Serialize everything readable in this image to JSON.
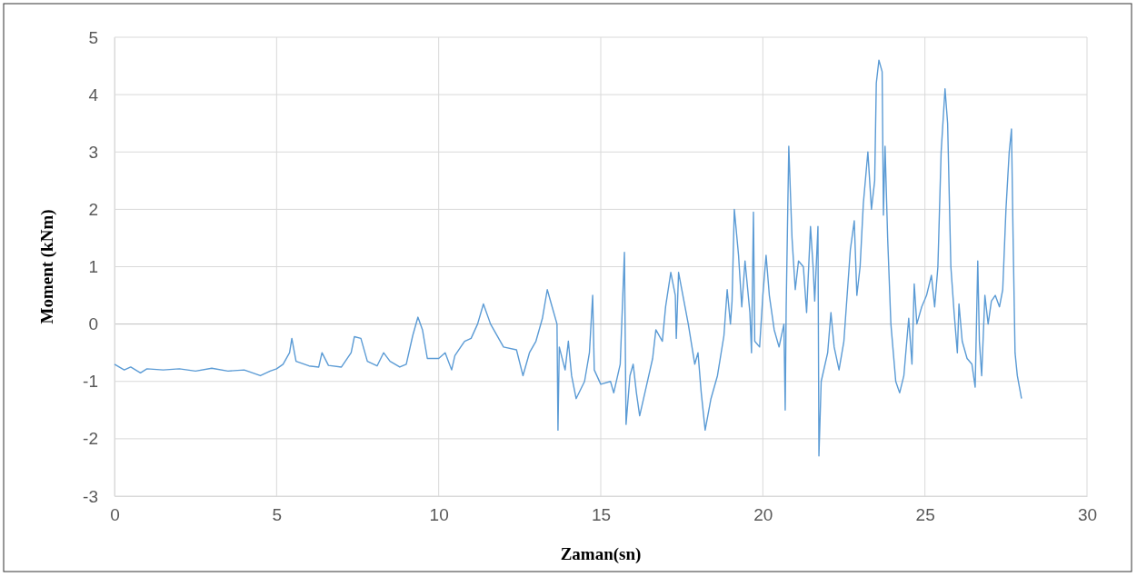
{
  "chart_data": {
    "type": "line",
    "xlabel": "Zaman(sn)",
    "ylabel": "Moment (kNm)",
    "xlim": [
      0,
      30
    ],
    "xticks": [
      0,
      5,
      10,
      15,
      20,
      25,
      30
    ],
    "ylim": [
      -3,
      5
    ],
    "yticks": [
      -3,
      -2,
      -1,
      0,
      1,
      2,
      3,
      4,
      5
    ],
    "grid": true,
    "marker": "none",
    "line_style": "solid",
    "series": [
      {
        "color": "#5b9bd5",
        "x": [
          0,
          0.3,
          0.5,
          0.8,
          1.0,
          1.5,
          2.0,
          2.5,
          3.0,
          3.5,
          4.0,
          4.5,
          4.8,
          5.0,
          5.2,
          5.4,
          5.47,
          5.6,
          6.0,
          6.3,
          6.4,
          6.6,
          7.0,
          7.3,
          7.4,
          7.6,
          7.8,
          8.1,
          8.3,
          8.5,
          8.8,
          9.0,
          9.2,
          9.36,
          9.5,
          9.65,
          10.0,
          10.2,
          10.4,
          10.5,
          10.8,
          11.0,
          11.2,
          11.38,
          11.6,
          12.0,
          12.4,
          12.6,
          12.8,
          13.0,
          13.2,
          13.35,
          13.5,
          13.65,
          13.68,
          13.72,
          13.9,
          14.0,
          14.1,
          14.24,
          14.5,
          14.65,
          14.75,
          14.8,
          15.0,
          15.3,
          15.4,
          15.6,
          15.73,
          15.78,
          15.9,
          16.0,
          16.1,
          16.2,
          16.4,
          16.6,
          16.7,
          16.9,
          17.0,
          17.16,
          17.3,
          17.33,
          17.4,
          17.7,
          17.9,
          18.0,
          18.1,
          18.22,
          18.4,
          18.6,
          18.8,
          18.9,
          19.0,
          19.05,
          19.12,
          19.25,
          19.35,
          19.45,
          19.6,
          19.65,
          19.71,
          19.75,
          19.9,
          20.0,
          20.1,
          20.2,
          20.35,
          20.5,
          20.65,
          20.69,
          20.72,
          20.8,
          20.9,
          21.0,
          21.1,
          21.25,
          21.35,
          21.47,
          21.55,
          21.6,
          21.7,
          21.73,
          21.8,
          22.0,
          22.1,
          22.2,
          22.35,
          22.5,
          22.7,
          22.82,
          22.9,
          23.0,
          23.1,
          23.24,
          23.35,
          23.45,
          23.5,
          23.58,
          23.68,
          23.72,
          23.77,
          23.85,
          23.95,
          24.1,
          24.22,
          24.35,
          24.5,
          24.6,
          24.67,
          24.75,
          24.9,
          25.05,
          25.2,
          25.3,
          25.4,
          25.5,
          25.62,
          25.7,
          25.8,
          25.9,
          26.0,
          26.05,
          26.15,
          26.3,
          26.45,
          26.55,
          26.63,
          26.68,
          26.75,
          26.85,
          26.95,
          27.05,
          27.17,
          27.3,
          27.4,
          27.5,
          27.6,
          27.67,
          27.72,
          27.78,
          27.85,
          27.98
        ],
        "values": [
          -0.7,
          -0.8,
          -0.75,
          -0.85,
          -0.78,
          -0.8,
          -0.78,
          -0.82,
          -0.77,
          -0.82,
          -0.8,
          -0.9,
          -0.82,
          -0.78,
          -0.7,
          -0.5,
          -0.25,
          -0.65,
          -0.73,
          -0.75,
          -0.5,
          -0.72,
          -0.75,
          -0.5,
          -0.22,
          -0.25,
          -0.65,
          -0.73,
          -0.5,
          -0.65,
          -0.75,
          -0.7,
          -0.2,
          0.12,
          -0.1,
          -0.6,
          -0.6,
          -0.5,
          -0.8,
          -0.55,
          -0.3,
          -0.25,
          0.0,
          0.35,
          0.0,
          -0.4,
          -0.45,
          -0.9,
          -0.5,
          -0.3,
          0.1,
          0.6,
          0.3,
          0.0,
          -1.85,
          -0.4,
          -0.8,
          -0.3,
          -0.9,
          -1.3,
          -1.0,
          -0.5,
          0.5,
          -0.8,
          -1.05,
          -1.0,
          -1.2,
          -0.7,
          1.25,
          -1.75,
          -0.9,
          -0.7,
          -1.2,
          -1.6,
          -1.1,
          -0.6,
          -0.1,
          -0.3,
          0.3,
          0.9,
          0.5,
          -0.25,
          0.9,
          0.0,
          -0.7,
          -0.5,
          -1.2,
          -1.85,
          -1.3,
          -0.9,
          -0.2,
          0.6,
          0.0,
          0.4,
          2.0,
          1.2,
          0.3,
          1.1,
          0.2,
          -0.5,
          1.95,
          -0.3,
          -0.4,
          0.5,
          1.2,
          0.5,
          -0.1,
          -0.4,
          0.0,
          -1.5,
          0.3,
          3.1,
          1.5,
          0.6,
          1.1,
          1.0,
          0.2,
          1.7,
          1.0,
          0.4,
          1.7,
          -2.3,
          -1.0,
          -0.5,
          0.2,
          -0.4,
          -0.8,
          -0.3,
          1.3,
          1.8,
          0.5,
          1.0,
          2.1,
          3.0,
          2.0,
          2.5,
          4.2,
          4.6,
          4.4,
          1.9,
          3.1,
          1.5,
          0.0,
          -1.0,
          -1.2,
          -0.9,
          0.1,
          -0.7,
          0.7,
          0.0,
          0.3,
          0.5,
          0.85,
          0.3,
          1.0,
          3.0,
          4.1,
          3.5,
          1.0,
          0.2,
          -0.5,
          0.35,
          -0.3,
          -0.6,
          -0.7,
          -1.1,
          1.1,
          -0.3,
          -0.9,
          0.5,
          0.0,
          0.4,
          0.5,
          0.3,
          0.6,
          2.0,
          3.0,
          3.4,
          1.5,
          -0.5,
          -0.9,
          -1.3
        ]
      }
    ]
  }
}
